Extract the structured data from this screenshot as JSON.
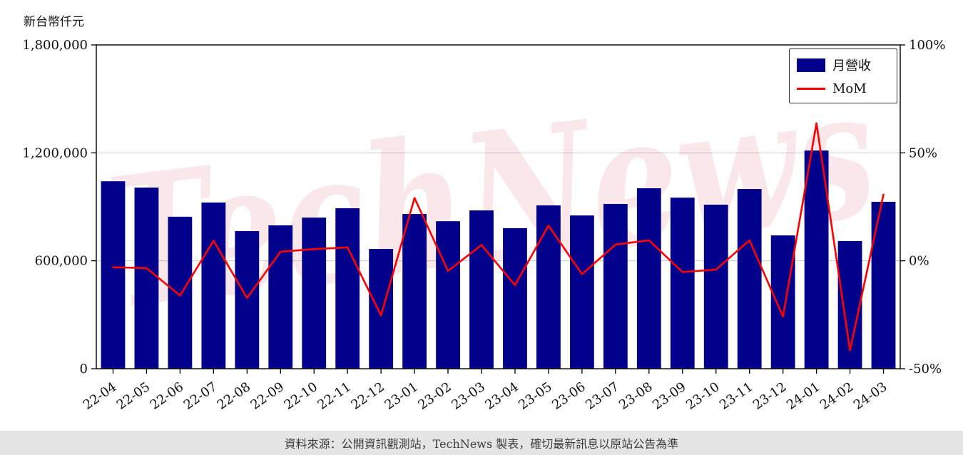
{
  "page": {
    "background": "#ffffff"
  },
  "footer": {
    "text": "資料來源：公開資訊觀測站，TechNews 製表，確切最新訊息以原站公告為準"
  },
  "chart_data": {
    "type": "bar",
    "title": "",
    "y_axis_label": "新台幣仟元",
    "watermark": "TechNews",
    "categories": [
      "22-04",
      "22-05",
      "22-06",
      "22-07",
      "22-08",
      "22-09",
      "22-10",
      "22-11",
      "22-12",
      "23-01",
      "23-02",
      "23-03",
      "23-04",
      "23-05",
      "23-06",
      "23-07",
      "23-08",
      "23-09",
      "23-10",
      "23-11",
      "23-12",
      "24-01",
      "24-02",
      "24-03"
    ],
    "series": [
      {
        "name": "月營收",
        "type": "bar",
        "axis": "left",
        "values": [
          1042000,
          1007000,
          845000,
          924000,
          765000,
          797000,
          840000,
          892000,
          666000,
          860000,
          820000,
          880000,
          781000,
          908000,
          852000,
          916000,
          1003000,
          951000,
          912000,
          999000,
          741000,
          1213000,
          710000,
          928000
        ]
      },
      {
        "name": "MoM",
        "type": "line",
        "axis": "right",
        "unit": "%",
        "values": [
          -3.0,
          -3.4,
          -16.1,
          9.3,
          -17.2,
          4.2,
          5.4,
          6.2,
          -25.3,
          29.1,
          -4.7,
          7.3,
          -11.3,
          16.3,
          -6.2,
          7.5,
          9.5,
          -5.2,
          -4.1,
          9.5,
          -25.8,
          63.7,
          -41.5,
          30.7
        ]
      }
    ],
    "ylim": [
      0,
      1800000
    ],
    "y2lim": [
      -50,
      100
    ],
    "left_ticks": [
      {
        "value": 0,
        "label": "0"
      },
      {
        "value": 600000,
        "label": "600,000"
      },
      {
        "value": 1200000,
        "label": "1,200,000"
      },
      {
        "value": 1800000,
        "label": "1,800,000"
      }
    ],
    "right_ticks": [
      {
        "value": -50,
        "label": "-50%"
      },
      {
        "value": 0,
        "label": "0%"
      },
      {
        "value": 50,
        "label": "50%"
      },
      {
        "value": 100,
        "label": "100%"
      }
    ],
    "grid": "horizontal",
    "legend_position": "top-right",
    "colors": {
      "bar": "#00008b",
      "line": "#ff0000",
      "grid": "#cccccc",
      "axis": "#000000",
      "watermark": "#d94f5c",
      "footer_bg": "#e5e5e5"
    }
  }
}
